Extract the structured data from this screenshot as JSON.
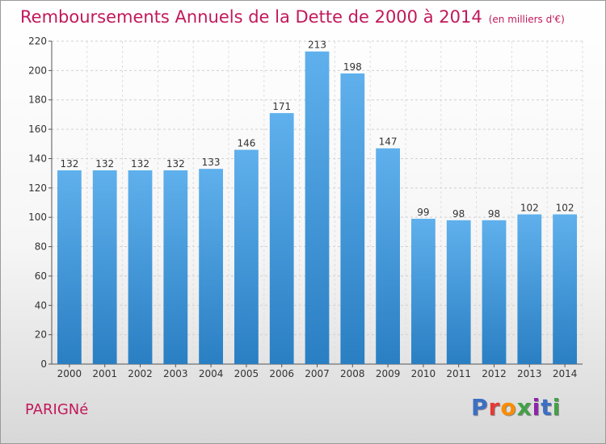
{
  "title": "Remboursements Annuels de la Dette de 2000 à 2014",
  "subtitle": "(en milliers d'€)",
  "place": "PARIGNé",
  "logo": {
    "text": "Proxiti",
    "letter_colors": [
      "#3b6fc4",
      "#e53935",
      "#fb8c00",
      "#43a047",
      "#8e24aa",
      "#3b6fc4",
      "#43a047"
    ]
  },
  "colors": {
    "accent": "#c2185b",
    "bar_top": "#5fb0ec",
    "bar_bottom": "#2a7fc3"
  },
  "chart_data": {
    "type": "bar",
    "title": "Remboursements Annuels de la Dette de 2000 à 2014",
    "categories": [
      "2000",
      "2001",
      "2002",
      "2003",
      "2004",
      "2005",
      "2006",
      "2007",
      "2008",
      "2009",
      "2010",
      "2011",
      "2012",
      "2013",
      "2014"
    ],
    "values": [
      132,
      132,
      132,
      132,
      133,
      146,
      171,
      213,
      198,
      147,
      99,
      98,
      98,
      102,
      102
    ],
    "ylim": [
      0,
      220
    ],
    "yticks": [
      0,
      20,
      40,
      60,
      80,
      100,
      120,
      140,
      160,
      180,
      200,
      220
    ],
    "grid": true
  }
}
